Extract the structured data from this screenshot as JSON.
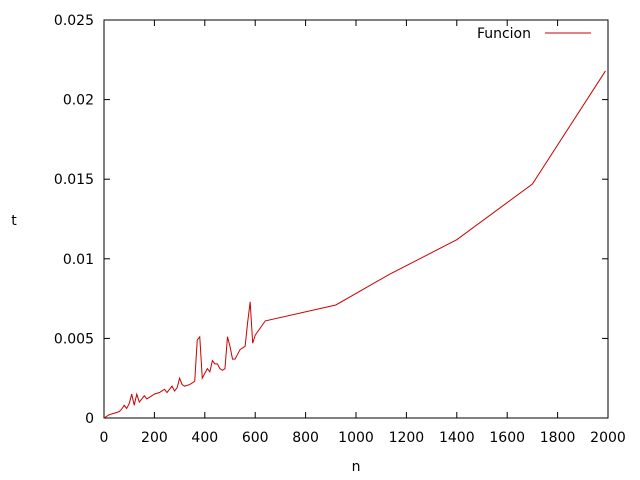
{
  "chart_data": {
    "type": "line",
    "xlabel": "n",
    "ylabel": "t",
    "xlim": [
      0,
      2000
    ],
    "ylim": [
      0,
      0.025
    ],
    "x_ticks": [
      0,
      200,
      400,
      600,
      800,
      1000,
      1200,
      1400,
      1600,
      1800,
      2000
    ],
    "y_ticks": [
      0,
      0.005,
      0.01,
      0.015,
      0.02,
      0.025
    ],
    "x_tick_labels": [
      "0",
      "200",
      "400",
      "600",
      "800",
      "1000",
      "1200",
      "1400",
      "1600",
      "1800",
      "2000"
    ],
    "y_tick_labels": [
      "0",
      "0.005",
      "0.01",
      "0.015",
      "0.02",
      "0.025"
    ],
    "grid": false,
    "legend_position": "top-right",
    "series": [
      {
        "name": "Funcion",
        "color": "#cc0000",
        "x": [
          0,
          20,
          40,
          60,
          70,
          80,
          90,
          100,
          110,
          120,
          130,
          140,
          150,
          160,
          170,
          180,
          200,
          220,
          240,
          250,
          260,
          270,
          280,
          290,
          300,
          310,
          320,
          340,
          360,
          370,
          380,
          390,
          400,
          410,
          420,
          430,
          440,
          450,
          460,
          470,
          480,
          490,
          500,
          510,
          520,
          530,
          540,
          550,
          560,
          570,
          580,
          590,
          600,
          640,
          920,
          1130,
          1400,
          1700,
          1990
        ],
        "y": [
          0,
          0.0002,
          0.0003,
          0.0004,
          0.00055,
          0.0008,
          0.0006,
          0.0009,
          0.0015,
          0.0008,
          0.0015,
          0.001,
          0.0012,
          0.0014,
          0.0012,
          0.0013,
          0.0015,
          0.0016,
          0.0018,
          0.0016,
          0.0018,
          0.002,
          0.0017,
          0.0019,
          0.0025,
          0.0021,
          0.002,
          0.0021,
          0.0023,
          0.0049,
          0.0051,
          0.0025,
          0.0028,
          0.0031,
          0.0029,
          0.0036,
          0.0034,
          0.0034,
          0.0031,
          0.003,
          0.0031,
          0.0051,
          0.0045,
          0.0037,
          0.0037,
          0.004,
          0.0043,
          0.0044,
          0.0045,
          0.006,
          0.0073,
          0.0047,
          0.0052,
          0.0061,
          0.0071,
          0.009,
          0.0112,
          0.0147,
          0.0218
        ]
      }
    ]
  }
}
